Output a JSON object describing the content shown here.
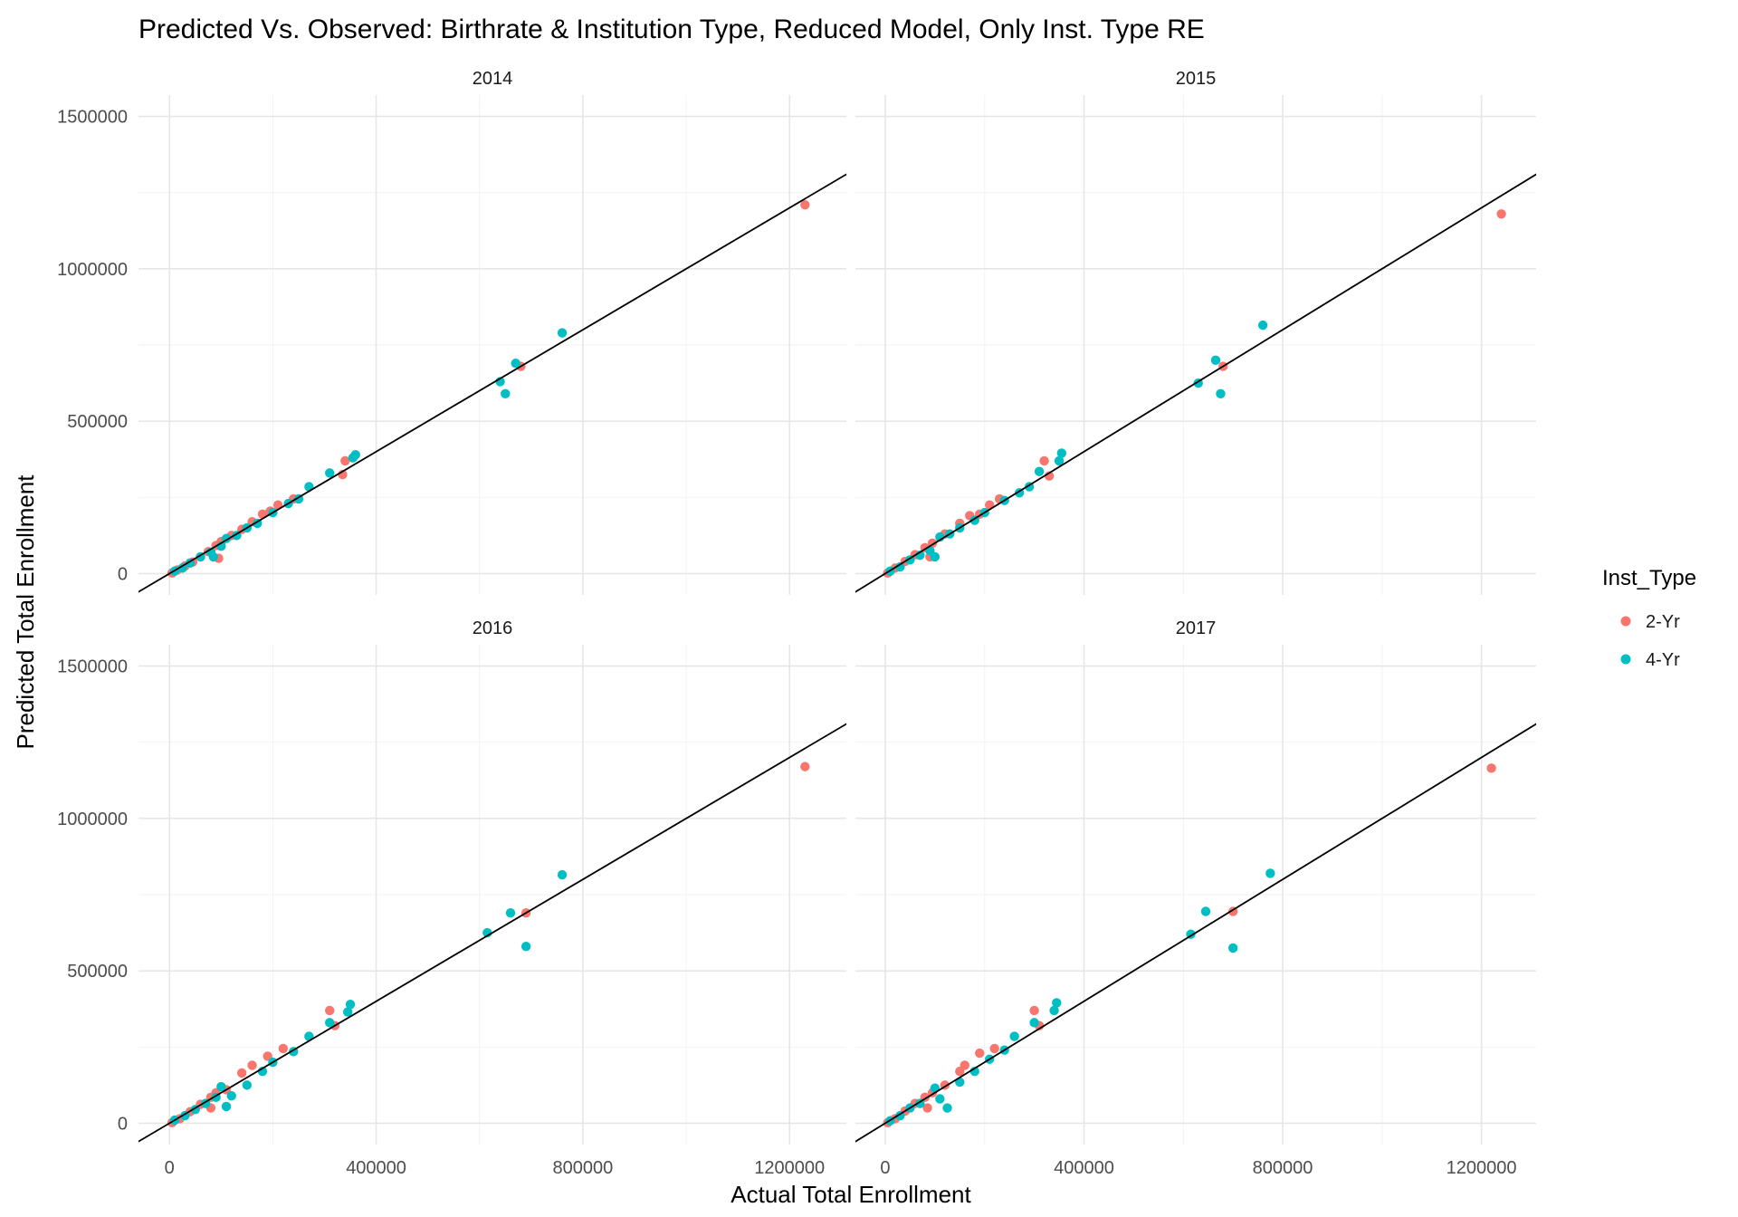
{
  "chart_data": {
    "type": "scatter",
    "title": "Predicted Vs. Observed: Birthrate & Institution Type, Reduced Model, Only Inst. Type RE",
    "xlabel": "Actual Total Enrollment",
    "ylabel": "Predicted Total Enrollment",
    "x_ticks": [
      0,
      400000,
      800000,
      1200000
    ],
    "y_ticks": [
      0,
      500000,
      1000000,
      1500000
    ],
    "x_tick_labels": [
      "0",
      "400000",
      "800000",
      "1200000"
    ],
    "y_tick_labels": [
      "0",
      "500000",
      "1000000",
      "1500000"
    ],
    "xlim": [
      -60000,
      1310000
    ],
    "ylim": [
      -70000,
      1570000
    ],
    "grid": true,
    "reference_line": {
      "slope": 1,
      "intercept": 0,
      "color": "#000000"
    },
    "legend": {
      "title": "Inst_Type",
      "position": "right",
      "entries": [
        {
          "label": "2-Yr",
          "color": "#F8766D"
        },
        {
          "label": "4-Yr",
          "color": "#00BFC4"
        }
      ]
    },
    "facets": [
      {
        "title": "2014",
        "series": [
          {
            "name": "2-Yr",
            "points": [
              [
                5000,
                2000
              ],
              [
                15000,
                12000
              ],
              [
                30000,
                25000
              ],
              [
                45000,
                38000
              ],
              [
                60000,
                55000
              ],
              [
                75000,
                72000
              ],
              [
                90000,
                92000
              ],
              [
                100000,
                105000
              ],
              [
                95000,
                50000
              ],
              [
                120000,
                125000
              ],
              [
                140000,
                145000
              ],
              [
                160000,
                170000
              ],
              [
                180000,
                195000
              ],
              [
                195000,
                205000
              ],
              [
                210000,
                225000
              ],
              [
                240000,
                245000
              ],
              [
                340000,
                370000
              ],
              [
                335000,
                325000
              ],
              [
                680000,
                680000
              ],
              [
                1230000,
                1210000
              ]
            ]
          },
          {
            "name": "4-Yr",
            "points": [
              [
                10000,
                8000
              ],
              [
                25000,
                18000
              ],
              [
                40000,
                35000
              ],
              [
                60000,
                55000
              ],
              [
                80000,
                70000
              ],
              [
                85000,
                55000
              ],
              [
                100000,
                90000
              ],
              [
                110000,
                115000
              ],
              [
                130000,
                125000
              ],
              [
                150000,
                150000
              ],
              [
                170000,
                165000
              ],
              [
                200000,
                200000
              ],
              [
                230000,
                230000
              ],
              [
                250000,
                245000
              ],
              [
                270000,
                285000
              ],
              [
                310000,
                330000
              ],
              [
                355000,
                380000
              ],
              [
                360000,
                390000
              ],
              [
                640000,
                630000
              ],
              [
                650000,
                590000
              ],
              [
                670000,
                690000
              ],
              [
                760000,
                790000
              ]
            ]
          }
        ]
      },
      {
        "title": "2015",
        "series": [
          {
            "name": "2-Yr",
            "points": [
              [
                5000,
                2000
              ],
              [
                20000,
                18000
              ],
              [
                40000,
                40000
              ],
              [
                60000,
                62000
              ],
              [
                80000,
                85000
              ],
              [
                95000,
                100000
              ],
              [
                90000,
                55000
              ],
              [
                120000,
                130000
              ],
              [
                150000,
                165000
              ],
              [
                170000,
                190000
              ],
              [
                190000,
                195000
              ],
              [
                210000,
                225000
              ],
              [
                230000,
                245000
              ],
              [
                320000,
                370000
              ],
              [
                330000,
                320000
              ],
              [
                680000,
                680000
              ],
              [
                1240000,
                1180000
              ]
            ]
          },
          {
            "name": "4-Yr",
            "points": [
              [
                10000,
                8000
              ],
              [
                30000,
                22000
              ],
              [
                50000,
                45000
              ],
              [
                70000,
                60000
              ],
              [
                90000,
                75000
              ],
              [
                100000,
                55000
              ],
              [
                110000,
                120000
              ],
              [
                130000,
                130000
              ],
              [
                150000,
                150000
              ],
              [
                180000,
                175000
              ],
              [
                200000,
                200000
              ],
              [
                240000,
                240000
              ],
              [
                270000,
                265000
              ],
              [
                290000,
                285000
              ],
              [
                310000,
                335000
              ],
              [
                350000,
                370000
              ],
              [
                355000,
                395000
              ],
              [
                630000,
                625000
              ],
              [
                665000,
                700000
              ],
              [
                675000,
                590000
              ],
              [
                760000,
                815000
              ]
            ]
          }
        ]
      },
      {
        "title": "2016",
        "series": [
          {
            "name": "2-Yr",
            "points": [
              [
                5000,
                2000
              ],
              [
                20000,
                15000
              ],
              [
                40000,
                38000
              ],
              [
                60000,
                62000
              ],
              [
                80000,
                85000
              ],
              [
                90000,
                100000
              ],
              [
                80000,
                50000
              ],
              [
                110000,
                110000
              ],
              [
                140000,
                165000
              ],
              [
                160000,
                190000
              ],
              [
                190000,
                220000
              ],
              [
                220000,
                245000
              ],
              [
                310000,
                370000
              ],
              [
                320000,
                320000
              ],
              [
                690000,
                690000
              ],
              [
                1230000,
                1170000
              ]
            ]
          },
          {
            "name": "4-Yr",
            "points": [
              [
                10000,
                10000
              ],
              [
                30000,
                25000
              ],
              [
                50000,
                45000
              ],
              [
                70000,
                65000
              ],
              [
                90000,
                85000
              ],
              [
                100000,
                120000
              ],
              [
                110000,
                55000
              ],
              [
                120000,
                90000
              ],
              [
                150000,
                125000
              ],
              [
                180000,
                170000
              ],
              [
                200000,
                200000
              ],
              [
                240000,
                235000
              ],
              [
                270000,
                285000
              ],
              [
                310000,
                330000
              ],
              [
                345000,
                365000
              ],
              [
                350000,
                390000
              ],
              [
                615000,
                625000
              ],
              [
                660000,
                690000
              ],
              [
                690000,
                580000
              ],
              [
                760000,
                815000
              ]
            ]
          }
        ]
      },
      {
        "title": "2017",
        "series": [
          {
            "name": "2-Yr",
            "points": [
              [
                5000,
                2000
              ],
              [
                20000,
                15000
              ],
              [
                40000,
                40000
              ],
              [
                60000,
                65000
              ],
              [
                80000,
                85000
              ],
              [
                95000,
                100000
              ],
              [
                85000,
                50000
              ],
              [
                120000,
                125000
              ],
              [
                150000,
                170000
              ],
              [
                160000,
                190000
              ],
              [
                190000,
                230000
              ],
              [
                220000,
                245000
              ],
              [
                300000,
                370000
              ],
              [
                310000,
                320000
              ],
              [
                700000,
                695000
              ],
              [
                1220000,
                1165000
              ]
            ]
          },
          {
            "name": "4-Yr",
            "points": [
              [
                10000,
                8000
              ],
              [
                30000,
                25000
              ],
              [
                50000,
                50000
              ],
              [
                70000,
                65000
              ],
              [
                100000,
                115000
              ],
              [
                110000,
                80000
              ],
              [
                125000,
                50000
              ],
              [
                150000,
                135000
              ],
              [
                180000,
                170000
              ],
              [
                210000,
                210000
              ],
              [
                240000,
                240000
              ],
              [
                260000,
                285000
              ],
              [
                300000,
                330000
              ],
              [
                340000,
                370000
              ],
              [
                345000,
                395000
              ],
              [
                615000,
                620000
              ],
              [
                645000,
                695000
              ],
              [
                700000,
                575000
              ],
              [
                775000,
                820000
              ]
            ]
          }
        ]
      }
    ]
  }
}
